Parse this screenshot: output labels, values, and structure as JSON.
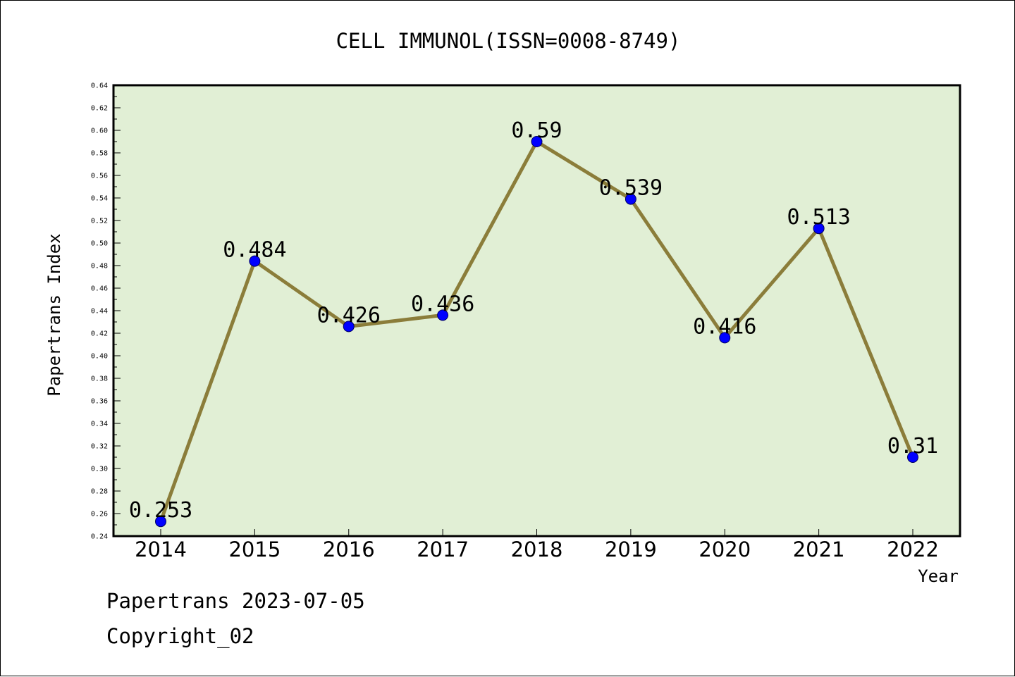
{
  "chart_data": {
    "type": "line",
    "title": "CELL IMMUNOL(ISSN=0008-8749)",
    "xlabel": "Year",
    "ylabel": "Papertrans Index",
    "categories": [
      "2014",
      "2015",
      "2016",
      "2017",
      "2018",
      "2019",
      "2020",
      "2021",
      "2022"
    ],
    "values": [
      0.253,
      0.484,
      0.426,
      0.436,
      0.59,
      0.539,
      0.416,
      0.513,
      0.31
    ],
    "data_labels": [
      "0.253",
      "0.484",
      "0.426",
      "0.436",
      "0.59",
      "0.539",
      "0.416",
      "0.513",
      "0.31"
    ],
    "ylim": [
      0.24,
      0.64
    ],
    "yticks": [
      "0.24",
      "0.26",
      "0.28",
      "0.30",
      "0.32",
      "0.34",
      "0.36",
      "0.38",
      "0.40",
      "0.42",
      "0.44",
      "0.46",
      "0.48",
      "0.50",
      "0.52",
      "0.54",
      "0.56",
      "0.58",
      "0.60",
      "0.62",
      "0.64"
    ],
    "grid": false,
    "legend": "none",
    "colors": {
      "plot_background": "#e1efd5",
      "line": "#8b7d3a",
      "marker": "#0000ff"
    }
  },
  "footer": {
    "date_line": "Papertrans 2023-07-05",
    "copyright_line": "Copyright_02"
  }
}
